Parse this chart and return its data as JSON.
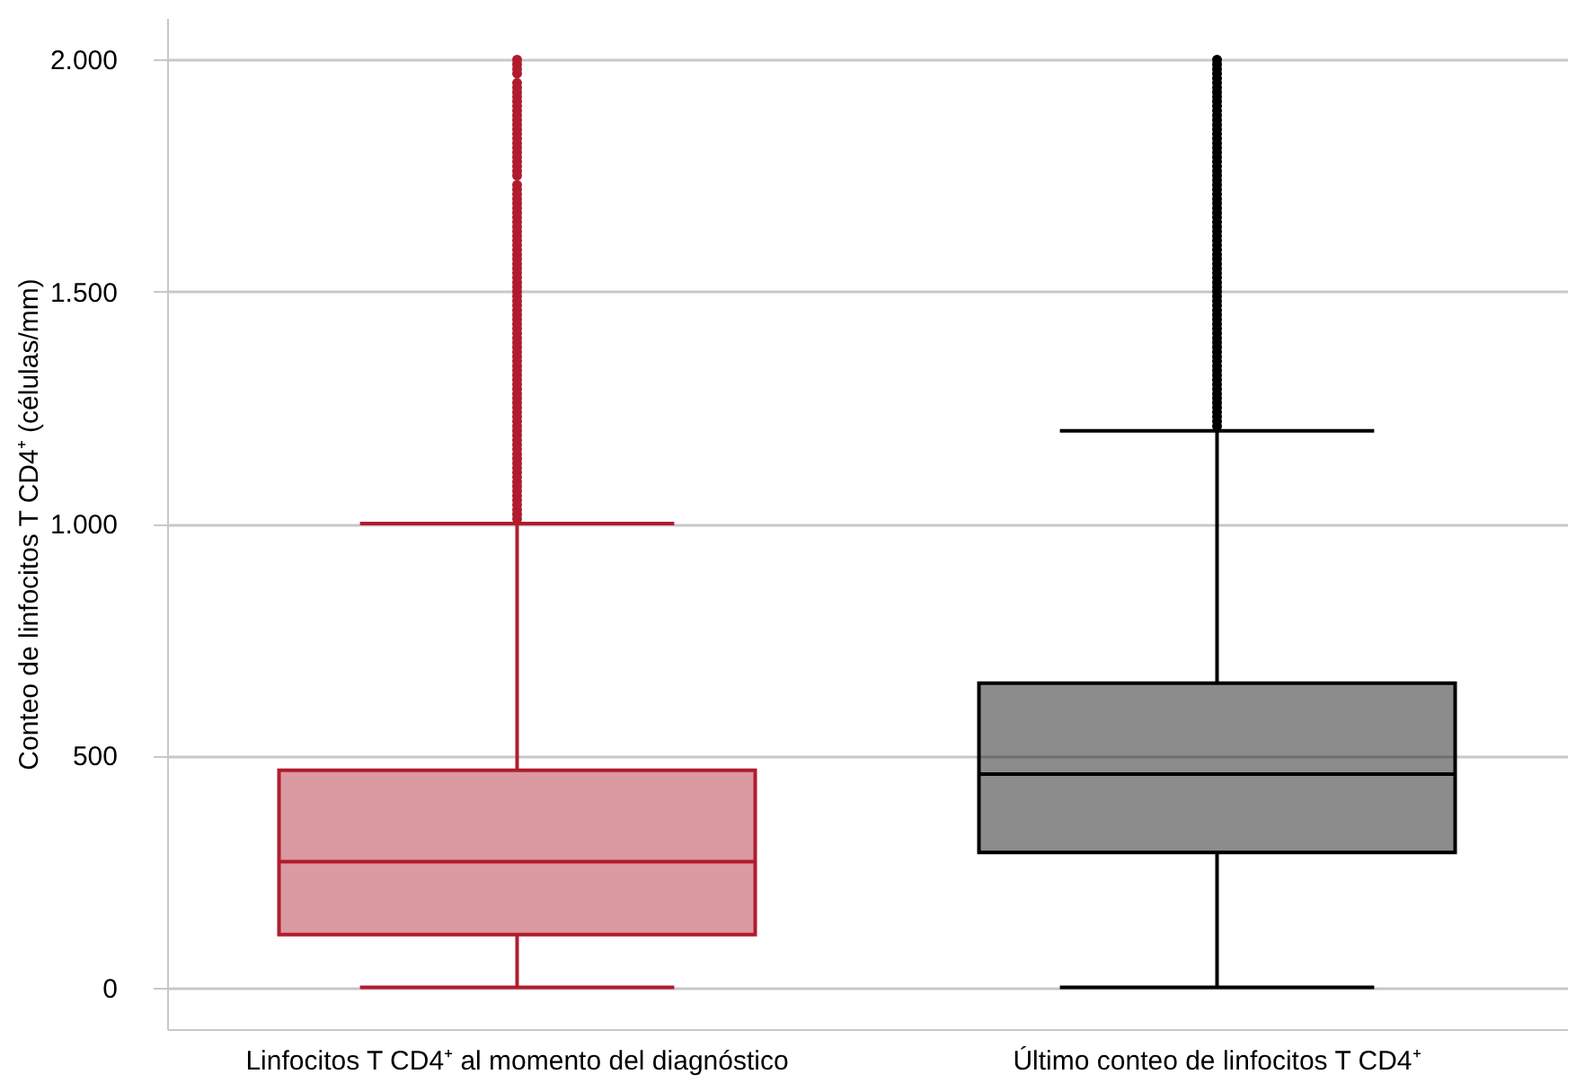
{
  "chart_data": {
    "type": "box",
    "ylabel": "Conteo de linfocitos T CD4⁺ (células/mm)",
    "categories": [
      "Linfocitos T CD4⁺ al momento del diagnóstico",
      "Último conteo de linfocitos T CD4⁺"
    ],
    "colors": [
      "#b01c2e",
      "#000000"
    ],
    "boxes": [
      {
        "low": 0,
        "q1": 114,
        "median": 271,
        "q3": 468,
        "high": 1000,
        "outliers": [
          1010,
          1020,
          1030,
          1040,
          1050,
          1060,
          1070,
          1080,
          1090,
          1100,
          1110,
          1120,
          1130,
          1140,
          1150,
          1160,
          1170,
          1180,
          1190,
          1200,
          1210,
          1220,
          1230,
          1240,
          1250,
          1260,
          1270,
          1280,
          1290,
          1300,
          1310,
          1320,
          1330,
          1340,
          1350,
          1360,
          1370,
          1380,
          1390,
          1400,
          1410,
          1420,
          1430,
          1440,
          1450,
          1460,
          1470,
          1480,
          1490,
          1500,
          1510,
          1520,
          1530,
          1540,
          1550,
          1560,
          1570,
          1580,
          1590,
          1600,
          1610,
          1620,
          1630,
          1640,
          1650,
          1660,
          1670,
          1680,
          1690,
          1700,
          1710,
          1720,
          1730,
          1750,
          1760,
          1770,
          1780,
          1790,
          1800,
          1810,
          1820,
          1830,
          1840,
          1850,
          1860,
          1870,
          1880,
          1890,
          1900,
          1910,
          1920,
          1930,
          1940,
          1950,
          1970,
          1980,
          1990,
          2000
        ]
      },
      {
        "low": 0,
        "q1": 291,
        "median": 460,
        "q3": 656,
        "high": 1200,
        "outliers": [
          1210,
          1220,
          1230,
          1240,
          1250,
          1260,
          1270,
          1280,
          1290,
          1300,
          1310,
          1320,
          1330,
          1340,
          1350,
          1360,
          1370,
          1380,
          1390,
          1400,
          1410,
          1420,
          1430,
          1440,
          1450,
          1460,
          1470,
          1480,
          1490,
          1500,
          1510,
          1520,
          1530,
          1540,
          1550,
          1560,
          1570,
          1580,
          1590,
          1600,
          1610,
          1620,
          1630,
          1640,
          1650,
          1660,
          1670,
          1680,
          1690,
          1700,
          1710,
          1720,
          1730,
          1740,
          1750,
          1760,
          1770,
          1780,
          1790,
          1800,
          1810,
          1820,
          1830,
          1840,
          1850,
          1860,
          1870,
          1880,
          1890,
          1900,
          1910,
          1920,
          1930,
          1940,
          1950,
          1960,
          1970,
          1980,
          1990,
          2000
        ]
      }
    ],
    "ylim": [
      -90,
      2090
    ],
    "yticks": [
      0,
      500,
      {
        "value": 1000,
        "label": "1.000"
      },
      {
        "value": 1500,
        "label": "1.500"
      },
      {
        "value": 2000,
        "label": "2.000"
      }
    ],
    "grid": "y"
  }
}
